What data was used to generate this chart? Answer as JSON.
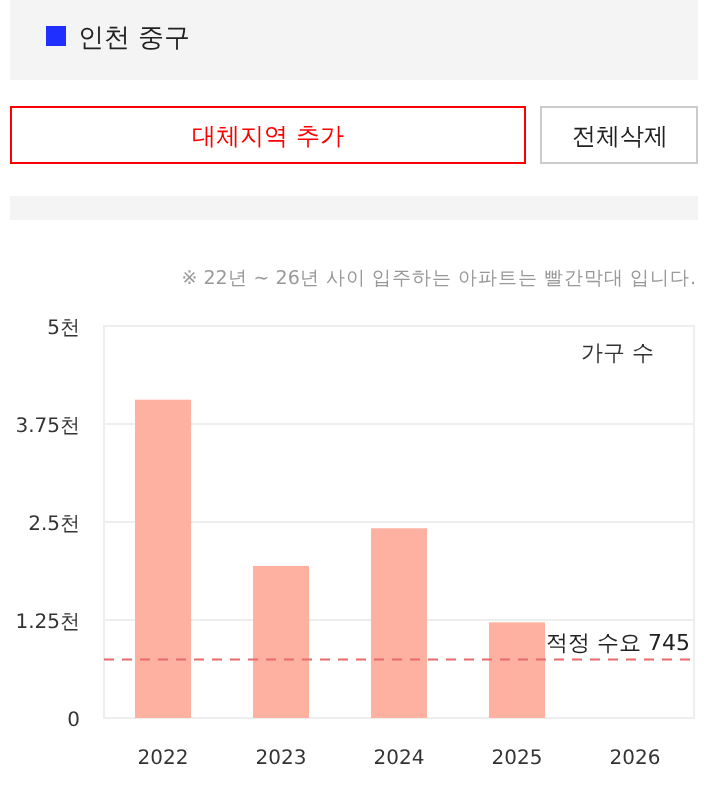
{
  "chart_data": {
    "type": "bar",
    "title": "인천 중구",
    "annotations": [
      "대체지역 추가",
      "전체삭제",
      "※ 22년 ~ 26년 사이 입주하는 아파트는 빨간막대 입니다.",
      "가구 수"
    ],
    "categories": [
      "2022",
      "2023",
      "2024",
      "2025",
      "2026"
    ],
    "values": [
      4.06,
      1.94,
      2.42,
      1.22,
      0
    ],
    "color": "#feb1a1",
    "ylim": [
      0,
      5
    ],
    "yticks": [
      0,
      {
        "value": 1.25,
        "label": "1.25천"
      },
      {
        "value": 2.5,
        "label": "2.5천"
      },
      {
        "value": 3.75,
        "label": "3.75천"
      },
      {
        "value": 5,
        "label": "5천"
      }
    ],
    "grid": "y",
    "ref_lines": [
      {
        "axis": "y",
        "value": 0.745,
        "label": "적정 수요 745",
        "color": "#e86a6a",
        "line_style": "dashed"
      }
    ]
  }
}
